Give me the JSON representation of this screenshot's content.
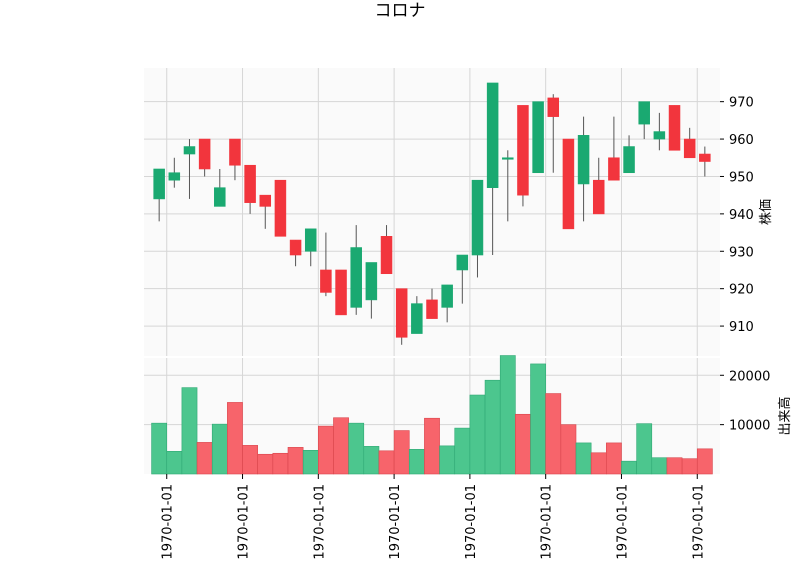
{
  "chart_data": {
    "type": "candlestick",
    "title": "コロナ",
    "price_panel": {
      "ylabel": "株価",
      "yticks": [
        910,
        920,
        930,
        940,
        950,
        960,
        970
      ],
      "ylim": [
        902,
        979
      ],
      "up_color": "#1aa971",
      "down_color": "#f2353d"
    },
    "volume_panel": {
      "ylabel": "出来高",
      "yticks": [
        10000,
        20000
      ],
      "ylim": [
        0,
        23500
      ],
      "up_color": "#4cc68e",
      "down_color": "#f7646b"
    },
    "x_tick_labels": [
      "1970-01-01",
      "1970-01-01",
      "1970-01-01",
      "1970-01-01",
      "1970-01-01",
      "1970-01-01",
      "1970-01-01",
      "1970-01-01"
    ],
    "x_tick_indices": [
      0.5,
      5.5,
      10.5,
      15.5,
      20.5,
      25.5,
      30.5,
      35.5
    ],
    "candles": [
      {
        "open": 944,
        "high": 952,
        "low": 938,
        "close": 952,
        "volume": 10300
      },
      {
        "open": 949,
        "high": 955,
        "low": 947,
        "close": 951,
        "volume": 4600
      },
      {
        "open": 956,
        "high": 960,
        "low": 944,
        "close": 958,
        "volume": 17500
      },
      {
        "open": 960,
        "high": 960,
        "low": 950,
        "close": 952,
        "volume": 6400
      },
      {
        "open": 942,
        "high": 952,
        "low": 942,
        "close": 947,
        "volume": 10100
      },
      {
        "open": 960,
        "high": 960,
        "low": 949,
        "close": 953,
        "volume": 14500
      },
      {
        "open": 953,
        "high": 953,
        "low": 940,
        "close": 943,
        "volume": 5800
      },
      {
        "open": 945,
        "high": 945,
        "low": 936,
        "close": 942,
        "volume": 4000
      },
      {
        "open": 949,
        "high": 949,
        "low": 934,
        "close": 934,
        "volume": 4200
      },
      {
        "open": 933,
        "high": 933,
        "low": 926,
        "close": 929,
        "volume": 5400
      },
      {
        "open": 930,
        "high": 936,
        "low": 926,
        "close": 936,
        "volume": 4800
      },
      {
        "open": 925,
        "high": 935,
        "low": 918,
        "close": 919,
        "volume": 9700
      },
      {
        "open": 925,
        "high": 925,
        "low": 913,
        "close": 913,
        "volume": 11400
      },
      {
        "open": 915,
        "high": 937,
        "low": 913,
        "close": 931,
        "volume": 10300
      },
      {
        "open": 917,
        "high": 927,
        "low": 912,
        "close": 927,
        "volume": 5600
      },
      {
        "open": 934,
        "high": 937,
        "low": 924,
        "close": 924,
        "volume": 4700
      },
      {
        "open": 920,
        "high": 920,
        "low": 905,
        "close": 907,
        "volume": 8800
      },
      {
        "open": 908,
        "high": 918,
        "low": 908,
        "close": 916,
        "volume": 5000
      },
      {
        "open": 917,
        "high": 920,
        "low": 912,
        "close": 912,
        "volume": 11300
      },
      {
        "open": 915,
        "high": 921,
        "low": 911,
        "close": 921,
        "volume": 5700
      },
      {
        "open": 925,
        "high": 929,
        "low": 916,
        "close": 929,
        "volume": 9300
      },
      {
        "open": 929,
        "high": 949,
        "low": 923,
        "close": 949,
        "volume": 16000
      },
      {
        "open": 947,
        "high": 975,
        "low": 929,
        "close": 975,
        "volume": 19000
      },
      {
        "open": 955,
        "high": 957,
        "low": 938,
        "close": 955,
        "volume": 24000
      },
      {
        "open": 969,
        "high": 969,
        "low": 942,
        "close": 945,
        "volume": 12100
      },
      {
        "open": 951,
        "high": 970,
        "low": 951,
        "close": 970,
        "volume": 22300
      },
      {
        "open": 971,
        "high": 972,
        "low": 951,
        "close": 966,
        "volume": 16300
      },
      {
        "open": 960,
        "high": 960,
        "low": 936,
        "close": 936,
        "volume": 10000
      },
      {
        "open": 948,
        "high": 966,
        "low": 938,
        "close": 961,
        "volume": 6300
      },
      {
        "open": 949,
        "high": 955,
        "low": 940,
        "close": 940,
        "volume": 4300
      },
      {
        "open": 955,
        "high": 966,
        "low": 949,
        "close": 949,
        "volume": 6300
      },
      {
        "open": 951,
        "high": 961,
        "low": 951,
        "close": 958,
        "volume": 2600
      },
      {
        "open": 964,
        "high": 970,
        "low": 960,
        "close": 970,
        "volume": 10200
      },
      {
        "open": 960,
        "high": 967,
        "low": 957,
        "close": 962,
        "volume": 3300
      },
      {
        "open": 969,
        "high": 969,
        "low": 957,
        "close": 957,
        "volume": 3300
      },
      {
        "open": 960,
        "high": 963,
        "low": 955,
        "close": 955,
        "volume": 3100
      },
      {
        "open": 956,
        "high": 958,
        "low": 950,
        "close": 954,
        "volume": 5100
      }
    ]
  }
}
